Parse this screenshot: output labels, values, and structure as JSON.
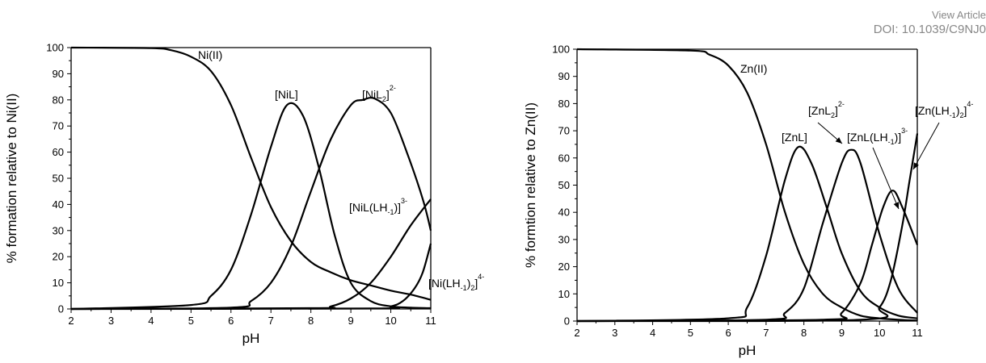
{
  "header": {
    "line1": "View Article",
    "line2": "DOI: 10.1039/C9NJ0"
  },
  "chart_data": [
    {
      "type": "line",
      "xlabel": "pH",
      "ylabel": "% formation relative to Ni(II)",
      "xlim": [
        2,
        11
      ],
      "ylim": [
        0,
        100
      ],
      "xticks": [
        2,
        3,
        4,
        5,
        6,
        7,
        8,
        9,
        10,
        11
      ],
      "yticks": [
        0,
        10,
        20,
        30,
        40,
        50,
        60,
        70,
        80,
        90,
        100
      ],
      "series": [
        {
          "name": "Ni(II)",
          "x": [
            2,
            4,
            4.5,
            5,
            5.5,
            6,
            6.5,
            7,
            7.5,
            8,
            8.5,
            9,
            9.5,
            10,
            10.5,
            11
          ],
          "y": [
            100,
            99.8,
            99,
            96.5,
            91,
            78,
            58,
            39,
            26,
            18,
            14,
            11,
            9,
            7,
            5.5,
            3.5
          ]
        },
        {
          "name": "[NiL]",
          "x": [
            2,
            5,
            5.5,
            6,
            6.5,
            7,
            7.4,
            7.8,
            8.2,
            8.6,
            9,
            9.5,
            10,
            10.5,
            11
          ],
          "y": [
            0,
            1.5,
            5,
            15,
            36,
            62,
            78,
            74,
            54,
            28,
            10,
            3,
            1,
            0.5,
            0.3
          ]
        },
        {
          "name": "[NiL2]2-",
          "x": [
            2,
            6,
            6.5,
            7,
            7.5,
            8,
            8.5,
            9,
            9.3,
            9.6,
            10,
            10.4,
            10.8,
            11
          ],
          "y": [
            0,
            0.5,
            3,
            10,
            24,
            45,
            65,
            78,
            80,
            80.5,
            75,
            60,
            42,
            30
          ]
        },
        {
          "name": "[NiL(LH-1)]3-",
          "x": [
            2,
            8,
            8.5,
            9,
            9.5,
            10,
            10.5,
            11
          ],
          "y": [
            0,
            0.3,
            1,
            4,
            10,
            20,
            32,
            42
          ]
        },
        {
          "name": "[Ni(LH-1)2]4-",
          "x": [
            2,
            9.5,
            10,
            10.3,
            10.6,
            10.8,
            11
          ],
          "y": [
            0,
            0.2,
            1,
            3,
            8,
            14,
            25
          ]
        }
      ],
      "labels": [
        {
          "series": "Ni(II)",
          "text": "Ni(II)"
        },
        {
          "series": "[NiL]",
          "text": "[NiL]"
        },
        {
          "series": "[NiL2]2-",
          "text_parts": [
            "[NiL",
            "2",
            "]",
            "2-"
          ]
        },
        {
          "series": "[NiL(LH-1)]3-",
          "text_parts": [
            "[NiL(LH",
            "-1",
            ")]",
            "3-"
          ]
        },
        {
          "series": "[Ni(LH-1)2]4-",
          "text_parts": [
            "[Ni(LH",
            "-1",
            ")",
            "2",
            "]",
            "4-"
          ]
        }
      ]
    },
    {
      "type": "line",
      "xlabel": "pH",
      "ylabel": "% formtion relative to Zn(II)",
      "xlim": [
        2,
        11
      ],
      "ylim": [
        0,
        100
      ],
      "xticks": [
        2,
        3,
        4,
        5,
        6,
        7,
        8,
        9,
        10,
        11
      ],
      "yticks": [
        0,
        10,
        20,
        30,
        40,
        50,
        60,
        70,
        80,
        90,
        100
      ],
      "series": [
        {
          "name": "Zn(II)",
          "x": [
            2,
            5,
            5.5,
            6,
            6.5,
            7,
            7.5,
            8,
            8.5,
            9,
            9.5,
            10,
            10.5,
            11
          ],
          "y": [
            100,
            99.5,
            98,
            94,
            84,
            65,
            40,
            21,
            10,
            5,
            2,
            1,
            0.5,
            0.2
          ]
        },
        {
          "name": "[ZnL]",
          "x": [
            2,
            6,
            6.5,
            7,
            7.5,
            7.85,
            8.2,
            8.6,
            9,
            9.5,
            10,
            10.5,
            11
          ],
          "y": [
            0,
            1,
            5,
            24,
            52,
            64,
            58,
            42,
            25,
            11,
            5,
            2,
            1
          ]
        },
        {
          "name": "[ZnL2]2-",
          "x": [
            2,
            7,
            7.5,
            8,
            8.5,
            9,
            9.25,
            9.5,
            10,
            10.5,
            11
          ],
          "y": [
            0,
            0.5,
            3,
            12,
            36,
            58,
            63,
            58,
            32,
            12,
            3
          ]
        },
        {
          "name": "[ZnL(LH-1)]3-",
          "x": [
            2,
            8.5,
            9,
            9.5,
            9.8,
            10.1,
            10.35,
            10.6,
            11
          ],
          "y": [
            0,
            0.5,
            3,
            14,
            28,
            42,
            48,
            42,
            28
          ]
        },
        {
          "name": "[Zn(LH-1)2]4-",
          "x": [
            2,
            9.5,
            10,
            10.3,
            10.6,
            10.8,
            11
          ],
          "y": [
            0,
            0.5,
            5,
            15,
            35,
            52,
            69
          ]
        }
      ],
      "labels": [
        {
          "series": "Zn(II)",
          "text": "Zn(II)"
        },
        {
          "series": "[ZnL]",
          "text": "[ZnL]"
        },
        {
          "series": "[ZnL2]2-",
          "text_parts": [
            "[ZnL",
            "2",
            "]",
            "2-"
          ]
        },
        {
          "series": "[ZnL(LH-1)]3-",
          "text_parts": [
            "[ZnL(LH",
            "-1",
            ")]",
            "3-"
          ]
        },
        {
          "series": "[Zn(LH-1)2]4-",
          "text_parts": [
            "[Zn(LH",
            "-1",
            ")",
            "2",
            "]",
            "4-"
          ]
        }
      ]
    }
  ]
}
